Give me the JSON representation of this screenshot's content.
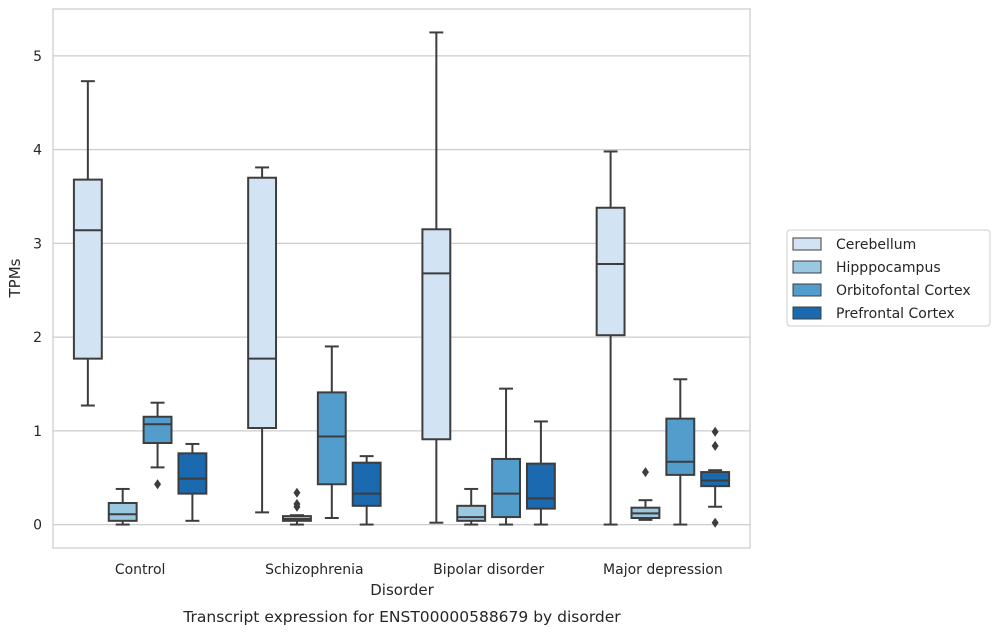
{
  "chart_data": {
    "type": "box",
    "title": "Transcript expression for ENST00000588679 by disorder",
    "xlabel": "Disorder",
    "ylabel": "TPMs",
    "ylim": [
      -0.25,
      5.5
    ],
    "yticks": [
      0,
      1,
      2,
      3,
      4,
      5
    ],
    "ytick_labels": [
      "0",
      "1",
      "2",
      "3",
      "4",
      "5"
    ],
    "grid": "horizontal",
    "legend_position": "right",
    "categories": [
      "Control",
      "Schizophrenia",
      "Bipolar disorder",
      "Major depression"
    ],
    "series": [
      {
        "name": "Cerebellum",
        "color": "#d2e3f3",
        "boxes": [
          {
            "min": 1.27,
            "q1": 1.77,
            "median": 3.14,
            "q3": 3.68,
            "max": 4.73,
            "outliers": []
          },
          {
            "min": 0.13,
            "q1": 1.03,
            "median": 1.77,
            "q3": 3.7,
            "max": 3.81,
            "outliers": []
          },
          {
            "min": 0.02,
            "q1": 0.91,
            "median": 2.68,
            "q3": 3.15,
            "max": 5.25,
            "outliers": []
          },
          {
            "min": 0.0,
            "q1": 2.02,
            "median": 2.78,
            "q3": 3.38,
            "max": 3.98,
            "outliers": []
          }
        ]
      },
      {
        "name": "Hipppocampus",
        "color": "#9ac8e0",
        "boxes": [
          {
            "min": 0.0,
            "q1": 0.04,
            "median": 0.11,
            "q3": 0.23,
            "max": 0.38,
            "outliers": []
          },
          {
            "min": 0.0,
            "q1": 0.04,
            "median": 0.06,
            "q3": 0.09,
            "max": 0.1,
            "outliers": [
              0.34,
              0.22,
              0.19
            ]
          },
          {
            "min": 0.0,
            "q1": 0.04,
            "median": 0.08,
            "q3": 0.2,
            "max": 0.38,
            "outliers": []
          },
          {
            "min": 0.05,
            "q1": 0.07,
            "median": 0.12,
            "q3": 0.18,
            "max": 0.26,
            "outliers": [
              0.56
            ]
          }
        ]
      },
      {
        "name": "Orbitofontal Cortex",
        "color": "#529dcc",
        "boxes": [
          {
            "min": 0.61,
            "q1": 0.87,
            "median": 1.07,
            "q3": 1.15,
            "max": 1.3,
            "outliers": [
              0.43
            ]
          },
          {
            "min": 0.07,
            "q1": 0.43,
            "median": 0.94,
            "q3": 1.41,
            "max": 1.9,
            "outliers": []
          },
          {
            "min": 0.0,
            "q1": 0.08,
            "median": 0.33,
            "q3": 0.7,
            "max": 1.45,
            "outliers": []
          },
          {
            "min": 0.0,
            "q1": 0.53,
            "median": 0.67,
            "q3": 1.13,
            "max": 1.55,
            "outliers": []
          }
        ]
      },
      {
        "name": "Prefrontal Cortex",
        "color": "#1b69af",
        "boxes": [
          {
            "min": 0.04,
            "q1": 0.33,
            "median": 0.49,
            "q3": 0.76,
            "max": 0.86,
            "outliers": []
          },
          {
            "min": 0.0,
            "q1": 0.2,
            "median": 0.33,
            "q3": 0.66,
            "max": 0.73,
            "outliers": []
          },
          {
            "min": 0.0,
            "q1": 0.17,
            "median": 0.28,
            "q3": 0.65,
            "max": 1.1,
            "outliers": []
          },
          {
            "min": 0.19,
            "q1": 0.41,
            "median": 0.47,
            "q3": 0.56,
            "max": 0.58,
            "outliers": [
              0.99,
              0.84,
              0.02
            ]
          }
        ]
      }
    ]
  }
}
